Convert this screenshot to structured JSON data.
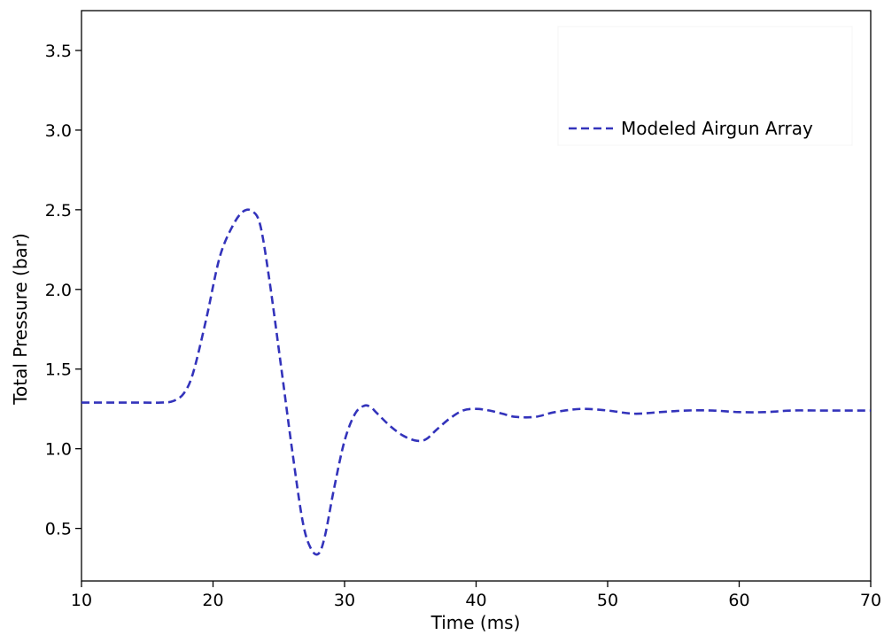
{
  "chart_data": {
    "type": "line",
    "xlabel": "Time (ms)",
    "ylabel": "Total Pressure (bar)",
    "xlim": [
      10,
      70
    ],
    "ylim": [
      0.17,
      3.75
    ],
    "xticks": [
      10,
      20,
      30,
      40,
      50,
      60,
      70
    ],
    "yticks": [
      0.5,
      1.0,
      1.5,
      2.0,
      2.5,
      3.0,
      3.5
    ],
    "xtick_labels": [
      "10",
      "20",
      "30",
      "40",
      "50",
      "60",
      "70"
    ],
    "ytick_labels": [
      "0.5",
      "1.0",
      "1.5",
      "2.0",
      "2.5",
      "3.0",
      "3.5"
    ],
    "grid": false,
    "legend": {
      "position": "top-right"
    },
    "series": [
      {
        "name": "Modeled Airgun Array",
        "color": "#3333bb",
        "style": "dashed",
        "x": [
          10,
          12,
          14,
          16,
          17,
          17.8,
          18.5,
          19.5,
          20.5,
          21.5,
          22.3,
          23.0,
          23.6,
          24.3,
          25.2,
          26.0,
          26.8,
          27.4,
          28.0,
          28.5,
          29.2,
          30.0,
          30.8,
          31.5,
          32.0,
          32.5,
          33.5,
          34.5,
          35.5,
          36.2,
          37.0,
          38.0,
          39.0,
          40.0,
          41.0,
          42.0,
          43.0,
          44.5,
          46.0,
          48.0,
          50.0,
          52.0,
          54.0,
          56.0,
          58.0,
          60.0,
          62.0,
          64.0,
          66.0,
          68.0,
          70.0
        ],
        "y": [
          1.29,
          1.29,
          1.29,
          1.29,
          1.3,
          1.35,
          1.48,
          1.82,
          2.2,
          2.4,
          2.49,
          2.49,
          2.4,
          2.05,
          1.5,
          1.0,
          0.55,
          0.38,
          0.34,
          0.45,
          0.75,
          1.05,
          1.22,
          1.27,
          1.26,
          1.22,
          1.14,
          1.08,
          1.05,
          1.06,
          1.12,
          1.19,
          1.24,
          1.25,
          1.24,
          1.22,
          1.2,
          1.2,
          1.23,
          1.25,
          1.24,
          1.22,
          1.23,
          1.24,
          1.24,
          1.23,
          1.23,
          1.24,
          1.24,
          1.24,
          1.24
        ]
      }
    ]
  }
}
